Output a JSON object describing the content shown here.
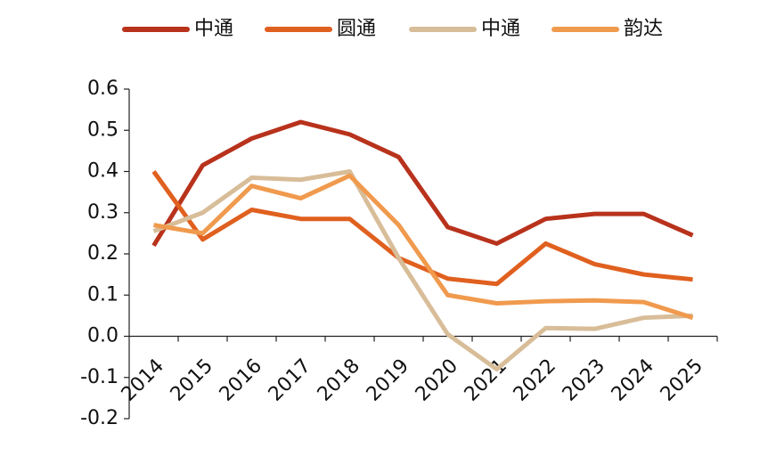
{
  "chart_data": {
    "type": "line",
    "categories": [
      "2014",
      "2015",
      "2016",
      "2017",
      "2018",
      "2019",
      "2020",
      "2021",
      "2022",
      "2023",
      "2024",
      "2025"
    ],
    "series": [
      {
        "name": "中通",
        "color": "#b8321c",
        "values": [
          0.22,
          0.415,
          0.48,
          0.52,
          0.49,
          0.435,
          0.265,
          0.225,
          0.285,
          0.297,
          0.297,
          0.245
        ]
      },
      {
        "name": "圆通",
        "color": "#e0601f",
        "values": [
          0.4,
          0.235,
          0.307,
          0.285,
          0.285,
          0.19,
          0.14,
          0.127,
          0.225,
          0.175,
          0.15,
          0.138
        ]
      },
      {
        "name": "中通",
        "color": "#d8bd99",
        "values": [
          0.255,
          0.3,
          0.385,
          0.38,
          0.4,
          0.19,
          0.005,
          -0.08,
          0.02,
          0.018,
          0.045,
          0.05
        ]
      },
      {
        "name": "韵达",
        "color": "#f09a4e",
        "values": [
          0.27,
          0.25,
          0.365,
          0.335,
          0.39,
          0.27,
          0.1,
          0.08,
          0.085,
          0.087,
          0.083,
          0.045
        ]
      }
    ],
    "ylim": [
      -0.2,
      0.6
    ],
    "yticks": [
      -0.2,
      -0.1,
      {
        "value": 0,
        "label": "0.0"
      },
      0.1,
      0.2,
      0.3,
      0.4,
      0.5,
      0.6
    ]
  }
}
